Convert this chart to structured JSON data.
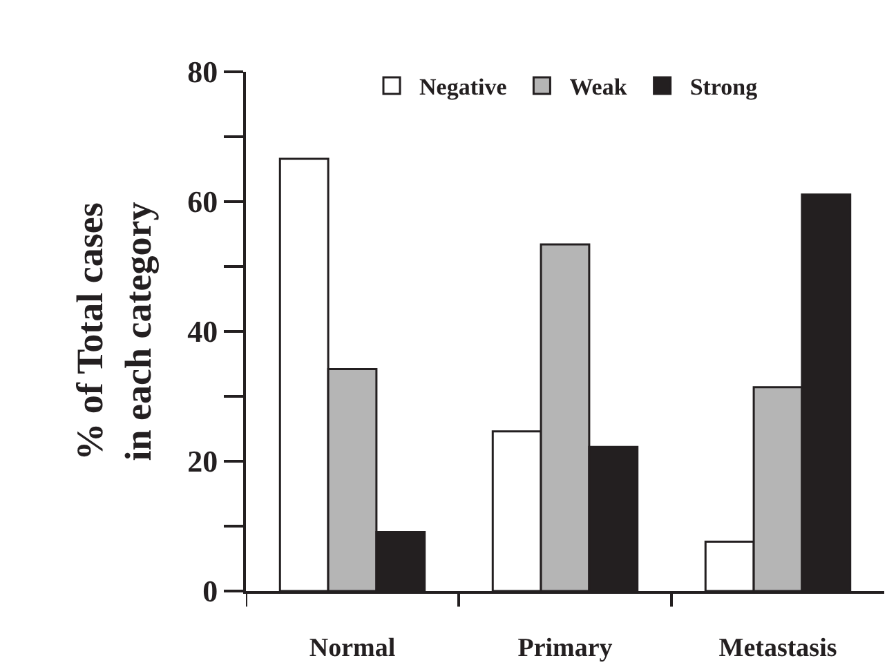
{
  "chart_data": {
    "type": "bar",
    "ylabel": "% of Total cases\nin each category",
    "categories": [
      "Normal",
      "Primary",
      "Metastasis"
    ],
    "series": [
      {
        "name": "Negative",
        "color": "#ffffff",
        "values": [
          66.6,
          24.6,
          7.6
        ]
      },
      {
        "name": "Weak",
        "color": "#b5b5b5",
        "values": [
          34.2,
          53.4,
          31.4
        ]
      },
      {
        "name": "Strong",
        "color": "#231f20",
        "values": [
          9.1,
          22.2,
          61.1
        ]
      }
    ],
    "ylim": [
      0,
      80
    ],
    "yticks": [
      0,
      {
        "value": 10,
        "label": null
      },
      20,
      {
        "value": 30,
        "label": null
      },
      40,
      {
        "value": 50,
        "label": null
      },
      60,
      {
        "value": 70,
        "label": null
      },
      80
    ],
    "grid": false,
    "legend": "top"
  }
}
